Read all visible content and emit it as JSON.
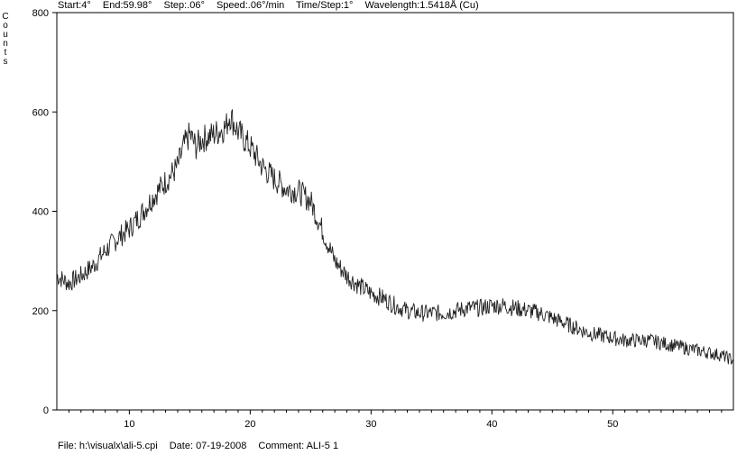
{
  "header": {
    "start": "Start:4°",
    "end": "End:59.98°",
    "step": "Step:.06°",
    "speed": "Speed:.06°/min",
    "time_step": "Time/Step:1°",
    "wavelength": "Wavelength:1.5418Å (Cu)"
  },
  "footer": {
    "file": "File: h:\\visualx\\ali-5.cpi",
    "date": "Date: 07-19-2008",
    "comment": "Comment: ALI-5 1"
  },
  "chart_data": {
    "type": "line",
    "title": "",
    "xlabel": "",
    "ylabel": "Counts",
    "xlim": [
      4,
      59.98
    ],
    "ylim": [
      0,
      800
    ],
    "x_ticks": [
      10,
      20,
      30,
      40,
      50
    ],
    "y_ticks": [
      0,
      200,
      400,
      600,
      800
    ],
    "x_tick_labels": [
      "10",
      "20",
      "30",
      "40",
      "50"
    ],
    "y_tick_labels": [
      "0",
      "200",
      "400",
      "600",
      "800"
    ],
    "grid": false,
    "series": [
      {
        "x": [
          4,
          5,
          6,
          7,
          8,
          9,
          10,
          11,
          12,
          13,
          14,
          14.5,
          15,
          15.5,
          16,
          17,
          18,
          18.3,
          19,
          20,
          21,
          22,
          23,
          24,
          25,
          26,
          27,
          28,
          29,
          30,
          31,
          32,
          33,
          34,
          35,
          36,
          37,
          38,
          39,
          40,
          41,
          42,
          43,
          44,
          45,
          46,
          47,
          48,
          49,
          50,
          51,
          52,
          53,
          54,
          55,
          56,
          57,
          58,
          59,
          59.98
        ],
        "y": [
          270,
          255,
          270,
          290,
          320,
          345,
          365,
          395,
          430,
          460,
          490,
          530,
          555,
          530,
          545,
          555,
          570,
          595,
          560,
          530,
          490,
          465,
          445,
          440,
          420,
          360,
          300,
          270,
          250,
          235,
          225,
          210,
          200,
          195,
          195,
          195,
          200,
          205,
          205,
          210,
          210,
          205,
          200,
          195,
          185,
          175,
          165,
          155,
          150,
          145,
          140,
          140,
          140,
          135,
          130,
          125,
          120,
          115,
          110,
          100
        ]
      }
    ]
  }
}
